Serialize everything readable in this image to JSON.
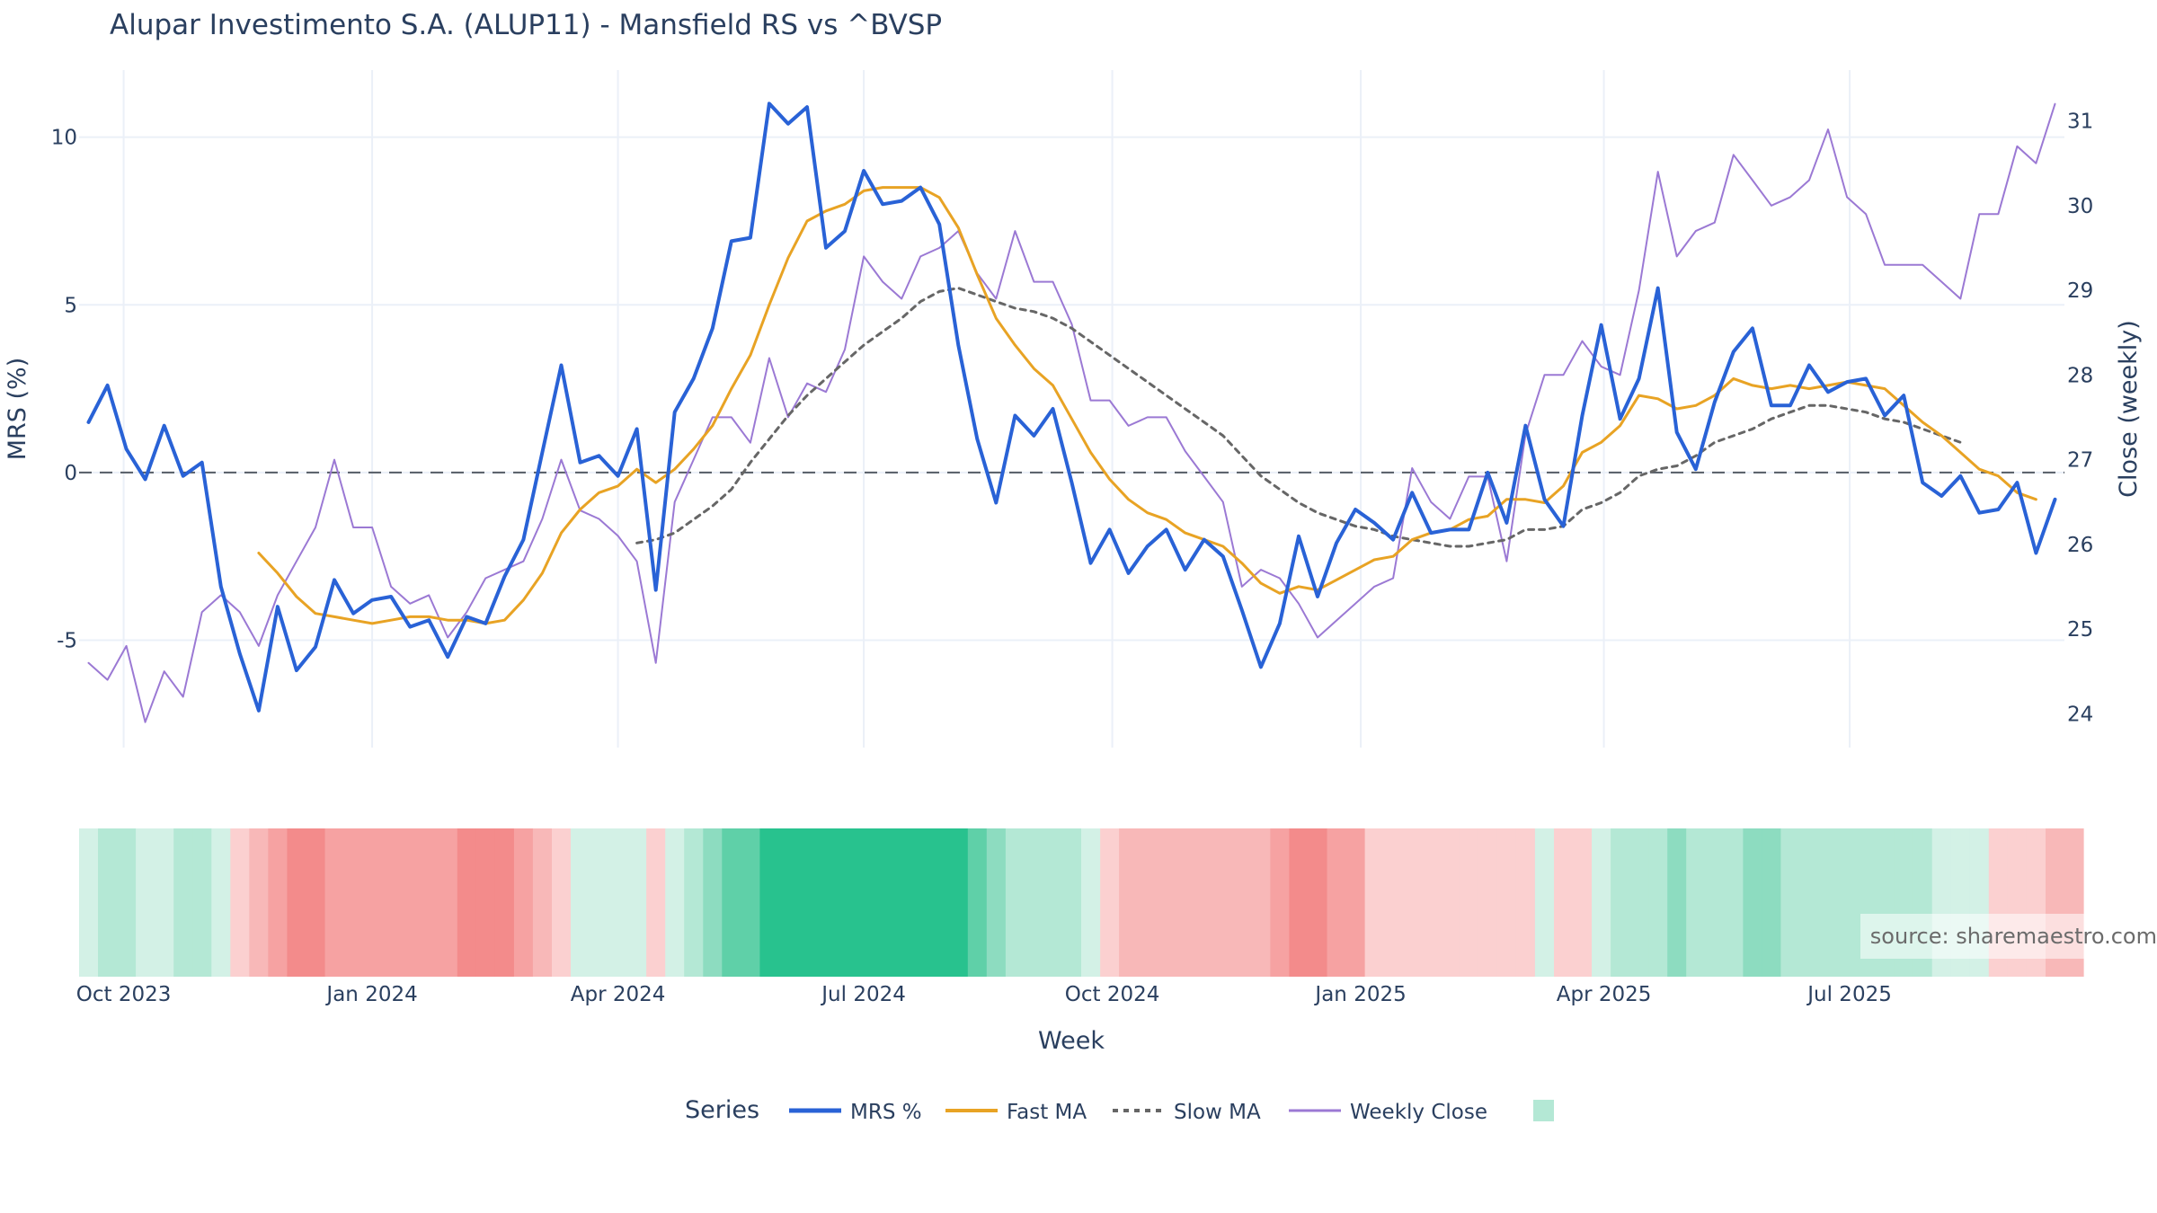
{
  "chart_data": {
    "type": "line",
    "title": "Alupar Investimento S.A. (ALUP11) - Mansfield RS vs ^BVSP",
    "xlabel": "Week",
    "ylabel_left": "MRS (%)",
    "ylabel_right": "Close (weekly)",
    "x_start": "2023-09-18",
    "x_step_days": 7,
    "x_ticks": [
      "Oct 2023",
      "Jan 2024",
      "Apr 2024",
      "Jul 2024",
      "Oct 2024",
      "Jan 2025",
      "Apr 2025",
      "Jul 2025"
    ],
    "x_tick_dates": [
      "2023-10-01",
      "2024-01-01",
      "2024-04-01",
      "2024-07-01",
      "2024-10-01",
      "2025-01-01",
      "2025-04-01",
      "2025-07-01"
    ],
    "y_left_range": [
      -8.2,
      12
    ],
    "y_left_ticks": [
      -5,
      0,
      5,
      10
    ],
    "y_right_range": [
      23.6,
      31.6
    ],
    "y_right_ticks": [
      24,
      25,
      26,
      27,
      28,
      29,
      30,
      31
    ],
    "zero_line": 0,
    "legend_title": "Series",
    "legend_position": "bottom",
    "source_text": "source: sharemaestro.com",
    "series": [
      {
        "name": "MRS %",
        "axis": "left",
        "color": "#2962d6",
        "dash": "solid",
        "width": 4,
        "start_index": 0,
        "values": [
          1.5,
          2.6,
          0.7,
          -0.2,
          1.4,
          -0.1,
          0.3,
          -3.4,
          -5.4,
          -7.1,
          -4.0,
          -5.9,
          -5.2,
          -3.2,
          -4.2,
          -3.8,
          -3.7,
          -4.6,
          -4.4,
          -5.5,
          -4.3,
          -4.5,
          -3.1,
          -2.0,
          0.6,
          3.2,
          0.3,
          0.5,
          -0.1,
          1.3,
          -3.5,
          1.8,
          2.8,
          4.3,
          6.9,
          7.0,
          11.0,
          10.4,
          10.9,
          6.7,
          7.2,
          9.0,
          8.0,
          8.1,
          8.5,
          7.4,
          3.8,
          1.0,
          -0.9,
          1.7,
          1.1,
          1.9,
          -0.3,
          -2.7,
          -1.7,
          -3.0,
          -2.2,
          -1.7,
          -2.9,
          -2.0,
          -2.5,
          -4.1,
          -5.8,
          -4.5,
          -1.9,
          -3.7,
          -2.1,
          -1.1,
          -1.5,
          -2.0,
          -0.6,
          -1.8,
          -1.7,
          -1.7,
          0.0,
          -1.5,
          1.4,
          -0.8,
          -1.6,
          1.7,
          4.4,
          1.6,
          2.8,
          5.5,
          1.2,
          0.1,
          2.1,
          3.6,
          4.3,
          2.0,
          2.0,
          3.2,
          2.4,
          2.7,
          2.8,
          1.7,
          2.3,
          -0.3,
          -0.7,
          -0.1,
          -1.2,
          -1.1,
          -0.3,
          -2.4,
          -0.8
        ]
      },
      {
        "name": "Fast MA",
        "axis": "left",
        "color": "#e8a324",
        "dash": "solid",
        "width": 3,
        "start_index": 9,
        "values": [
          -2.4,
          -3.0,
          -3.7,
          -4.2,
          -4.3,
          -4.4,
          -4.5,
          -4.4,
          -4.3,
          -4.3,
          -4.4,
          -4.4,
          -4.5,
          -4.4,
          -3.8,
          -3.0,
          -1.8,
          -1.1,
          -0.6,
          -0.4,
          0.1,
          -0.3,
          0.1,
          0.7,
          1.4,
          2.5,
          3.5,
          5.0,
          6.4,
          7.5,
          7.8,
          8.0,
          8.4,
          8.5,
          8.5,
          8.5,
          8.2,
          7.3,
          5.9,
          4.6,
          3.8,
          3.1,
          2.6,
          1.6,
          0.6,
          -0.2,
          -0.8,
          -1.2,
          -1.4,
          -1.8,
          -2.0,
          -2.2,
          -2.7,
          -3.3,
          -3.6,
          -3.4,
          -3.5,
          -3.2,
          -2.9,
          -2.6,
          -2.5,
          -2.0,
          -1.8,
          -1.7,
          -1.4,
          -1.3,
          -0.8,
          -0.8,
          -0.9,
          -0.4,
          0.6,
          0.9,
          1.4,
          2.3,
          2.2,
          1.9,
          2.0,
          2.3,
          2.8,
          2.6,
          2.5,
          2.6,
          2.5,
          2.6,
          2.7,
          2.6,
          2.5,
          2.0,
          1.5,
          1.1,
          0.6,
          0.1,
          -0.1,
          -0.6,
          -0.8
        ]
      },
      {
        "name": "Slow MA",
        "axis": "left",
        "color": "#666666",
        "dash": "dot",
        "width": 3,
        "start_index": 29,
        "values": [
          -2.1,
          -2.0,
          -1.8,
          -1.4,
          -1.0,
          -0.5,
          0.3,
          1.0,
          1.7,
          2.3,
          2.8,
          3.3,
          3.8,
          4.2,
          4.6,
          5.1,
          5.4,
          5.5,
          5.3,
          5.1,
          4.9,
          4.8,
          4.6,
          4.3,
          3.9,
          3.5,
          3.1,
          2.7,
          2.3,
          1.9,
          1.5,
          1.1,
          0.5,
          -0.1,
          -0.5,
          -0.9,
          -1.2,
          -1.4,
          -1.6,
          -1.7,
          -1.9,
          -2.0,
          -2.1,
          -2.2,
          -2.2,
          -2.1,
          -2.0,
          -1.7,
          -1.7,
          -1.6,
          -1.1,
          -0.9,
          -0.6,
          -0.1,
          0.1,
          0.2,
          0.5,
          0.9,
          1.1,
          1.3,
          1.6,
          1.8,
          2.0,
          2.0,
          1.9,
          1.8,
          1.6,
          1.5,
          1.3,
          1.1,
          0.9
        ]
      },
      {
        "name": "Weekly Close",
        "axis": "right",
        "color": "#9b79d4",
        "dash": "solid",
        "width": 2,
        "start_index": 0,
        "values": [
          24.6,
          24.4,
          24.8,
          23.9,
          24.5,
          24.2,
          25.2,
          25.4,
          25.2,
          24.8,
          25.4,
          25.8,
          26.2,
          27.0,
          26.2,
          26.2,
          25.5,
          25.3,
          25.4,
          24.9,
          25.2,
          25.6,
          25.7,
          25.8,
          26.3,
          27.0,
          26.4,
          26.3,
          26.1,
          25.8,
          24.6,
          26.5,
          27.0,
          27.5,
          27.5,
          27.2,
          28.2,
          27.5,
          27.9,
          27.8,
          28.3,
          29.4,
          29.1,
          28.9,
          29.4,
          29.5,
          29.7,
          29.2,
          28.9,
          29.7,
          29.1,
          29.1,
          28.6,
          27.7,
          27.7,
          27.4,
          27.5,
          27.5,
          27.1,
          26.8,
          26.5,
          25.5,
          25.7,
          25.6,
          25.3,
          24.9,
          25.1,
          25.3,
          25.5,
          25.6,
          26.9,
          26.5,
          26.3,
          26.8,
          26.8,
          25.8,
          27.3,
          28.0,
          28.0,
          28.4,
          28.1,
          28.0,
          29.0,
          30.4,
          29.4,
          29.7,
          29.8,
          30.6,
          30.3,
          30.0,
          30.1,
          30.3,
          30.9,
          30.1,
          29.9,
          29.3,
          29.3,
          29.3,
          29.1,
          28.9,
          29.9,
          29.9,
          30.7,
          30.5,
          31.2
        ]
      }
    ],
    "regime_strip": {
      "type": "heatmap",
      "start_index": 0,
      "values": [
        1,
        2,
        2,
        1,
        1,
        2,
        2,
        1,
        -1,
        -2,
        -3,
        -4,
        -4,
        -3,
        -3,
        -3,
        -3,
        -3,
        -3,
        -3,
        -4,
        -4,
        -4,
        -3,
        -2,
        -1,
        1,
        1,
        1,
        1,
        -1,
        1,
        2,
        3,
        4,
        4,
        5,
        5,
        5,
        5,
        5,
        5,
        5,
        5,
        5,
        5,
        5,
        4,
        3,
        2,
        2,
        2,
        2,
        1,
        -1,
        -2,
        -2,
        -2,
        -2,
        -2,
        -2,
        -2,
        -2,
        -3,
        -4,
        -4,
        -3,
        -3,
        -1,
        -1,
        -1,
        -1,
        -1,
        -1,
        -1,
        -1,
        -1,
        1,
        -1,
        -1,
        1,
        2,
        2,
        2,
        3,
        2,
        2,
        2,
        3,
        3,
        2,
        2,
        2,
        2,
        2,
        2,
        2,
        2,
        1,
        1,
        1,
        -1,
        -1,
        -1,
        -2,
        -2
      ],
      "colors": {
        "-4": "#f38b8b",
        "-3": "#f6a2a2",
        "-2": "#f8b8b8",
        "-1": "#fbd0d0",
        "1": "#d3f1e6",
        "2": "#b4e8d5",
        "3": "#8ddcc0",
        "4": "#5fd0a8",
        "5": "#28c28e"
      }
    }
  }
}
